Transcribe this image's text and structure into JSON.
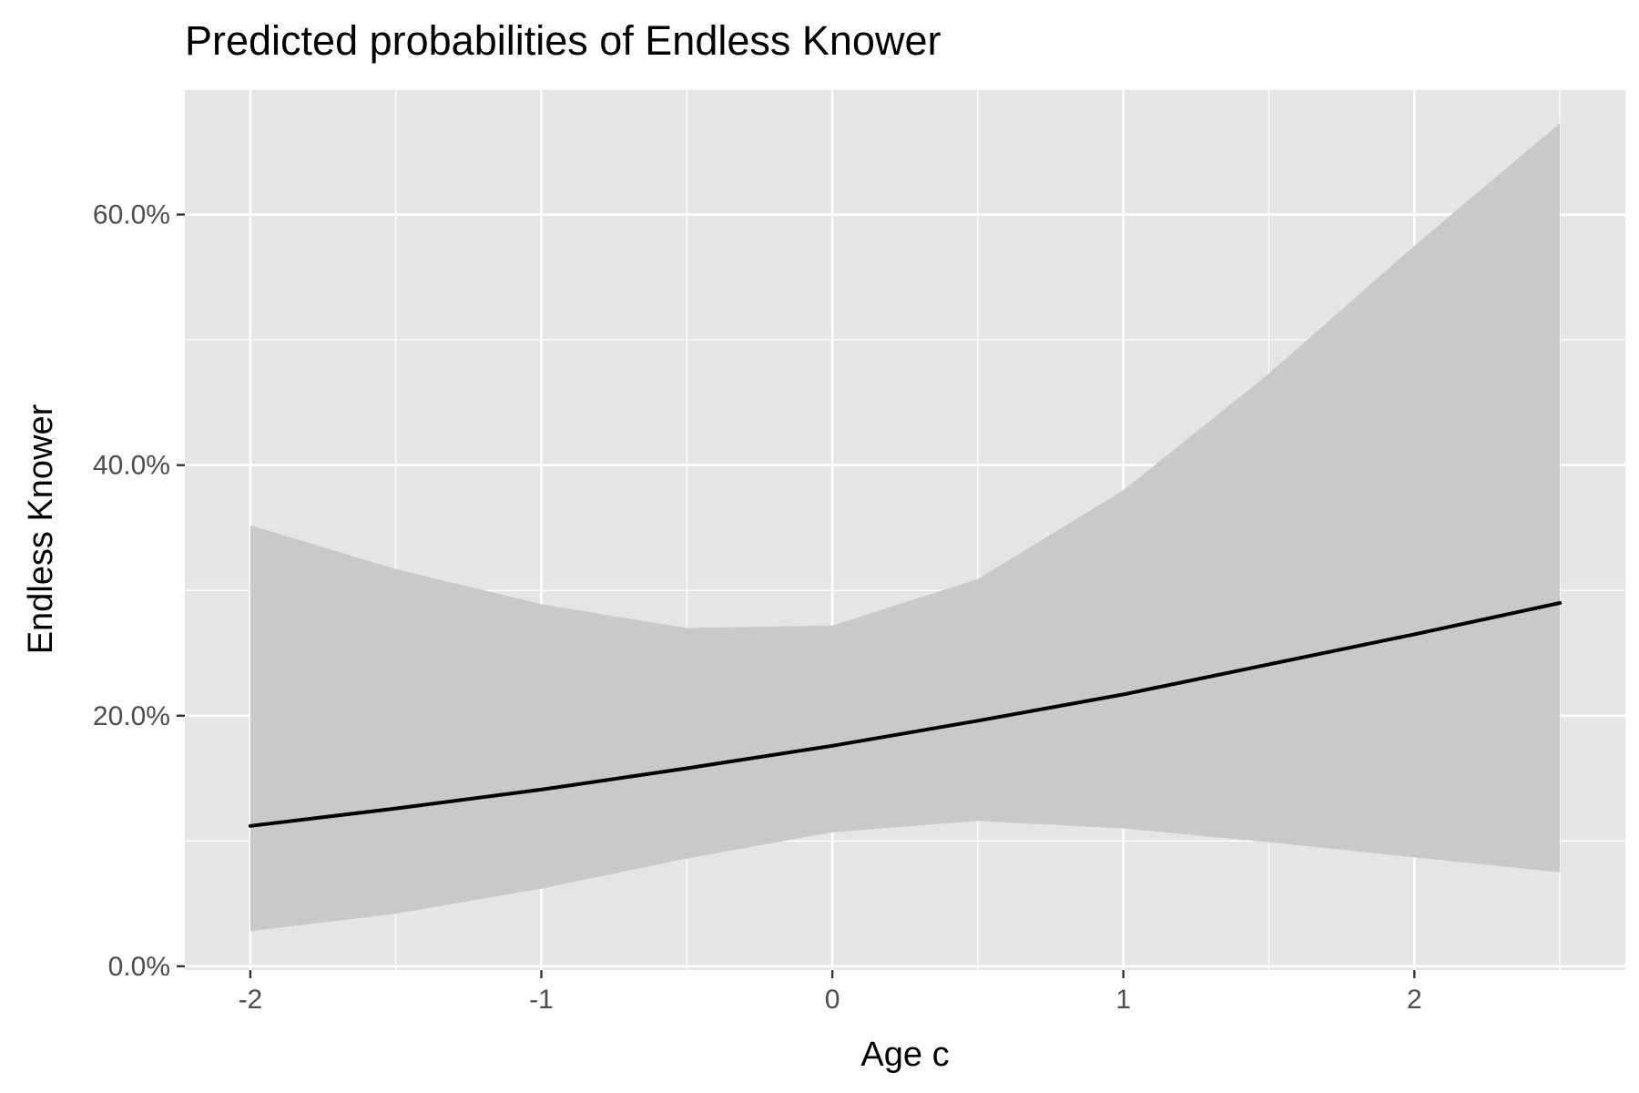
{
  "chart_data": {
    "type": "line",
    "title": "Predicted probabilities of Endless Knower",
    "xlabel": "Age c",
    "ylabel": "Endless Knower",
    "xlim": [
      -2.225,
      2.725
    ],
    "ylim": [
      -0.003,
      0.7
    ],
    "x_ticks": [
      -2,
      -1,
      0,
      1,
      2
    ],
    "x_tick_labels": [
      "-2",
      "-1",
      "0",
      "1",
      "2"
    ],
    "y_ticks": [
      0.0,
      0.2,
      0.4,
      0.6
    ],
    "y_tick_labels": [
      "0.0%",
      "20.0%",
      "40.0%",
      "60.0%"
    ],
    "grid": true,
    "legend": "none",
    "series": [
      {
        "x": [
          -2,
          -1.5,
          -1,
          -0.5,
          0,
          0.5,
          1,
          1.5,
          2,
          2.5
        ],
        "values": [
          0.112,
          0.126,
          0.141,
          0.158,
          0.176,
          0.196,
          0.217,
          0.241,
          0.265,
          0.29
        ],
        "ci_low": [
          0.028,
          0.042,
          0.062,
          0.086,
          0.107,
          0.116,
          0.11,
          0.099,
          0.087,
          0.075
        ],
        "ci_high": [
          0.352,
          0.317,
          0.289,
          0.27,
          0.272,
          0.309,
          0.38,
          0.473,
          0.575,
          0.673
        ],
        "line_color": "#000000",
        "band_color": "#c9c9c9"
      }
    ],
    "colors": {
      "panel_background": "#e5e5e5",
      "grid": "#ffffff",
      "tick_text": "#4d4d4d",
      "tick_mark": "#333333"
    }
  }
}
